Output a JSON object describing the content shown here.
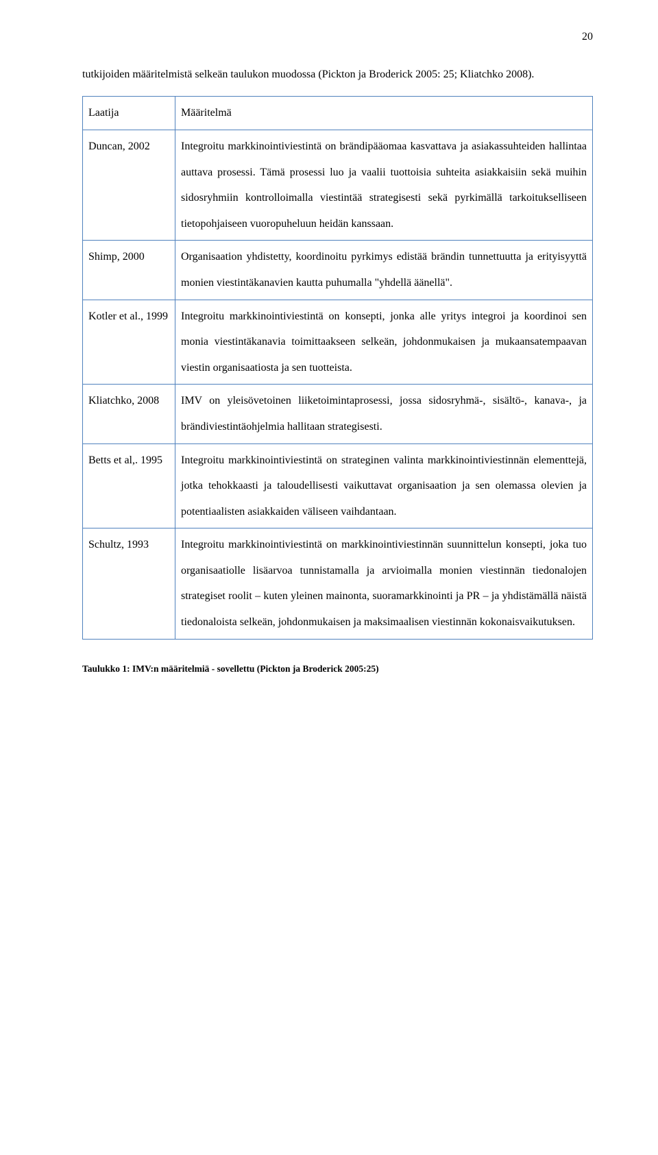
{
  "page_number": "20",
  "intro_text": "tutkijoiden määritelmistä selkeän taulukon muodossa (Pickton ja Broderick 2005: 25; Kliatchko 2008).",
  "table": {
    "header": {
      "author": "Laatija",
      "definition": "Määritelmä"
    },
    "rows": [
      {
        "author": "Duncan, 2002",
        "definition": "Integroitu markkinointiviestintä on brändipääomaa kasvattava ja asiakassuhteiden hallintaa auttava prosessi. Tämä prosessi luo ja vaalii tuottoisia suhteita asiakkaisiin sekä muihin sidosryhmiin kontrolloimalla viestintää strategisesti sekä pyrkimällä tarkoitukselliseen tietopohjaiseen vuoropuheluun heidän kanssaan."
      },
      {
        "author": "Shimp, 2000",
        "definition": "Organisaation yhdistetty, koordinoitu pyrkimys edistää brändin tunnettuutta ja erityisyyttä monien viestintäkanavien kautta puhumalla \"yhdellä äänellä\"."
      },
      {
        "author": "Kotler et al., 1999",
        "definition": "Integroitu markkinointiviestintä on konsepti, jonka alle yritys integroi ja koordinoi sen monia viestintäkanavia toimittaakseen selkeän, johdonmukaisen ja mukaansatempaavan viestin organisaatiosta ja sen tuotteista."
      },
      {
        "author": "Kliatchko, 2008",
        "definition": "IMV on yleisövetoinen liiketoimintaprosessi, jossa sidosryhmä-, sisältö-, kanava-, ja brändiviestintäohjelmia hallitaan strategisesti."
      },
      {
        "author": "Betts et al,. 1995",
        "definition": "Integroitu markkinointiviestintä on strateginen valinta markkinointiviestinnän elementtejä, jotka tehokkaasti ja taloudellisesti vaikuttavat organisaation ja sen olemassa olevien ja potentiaalisten asiakkaiden väliseen vaihdantaan."
      },
      {
        "author": "Schultz, 1993",
        "definition": "Integroitu markkinointiviestintä on markkinointiviestinnän suunnittelun konsepti, joka tuo organisaatiolle lisäarvoa tunnistamalla ja arvioimalla monien viestinnän tiedonalojen strategiset roolit – kuten yleinen mainonta, suoramarkkinointi ja PR – ja yhdistämällä näistä tiedonaloista selkeän, johdonmukaisen ja maksimaalisen viestinnän kokonaisvaikutuksen."
      }
    ]
  },
  "caption": "Taulukko 1: IMV:n määritelmiä - sovellettu (Pickton ja Broderick 2005:25)"
}
